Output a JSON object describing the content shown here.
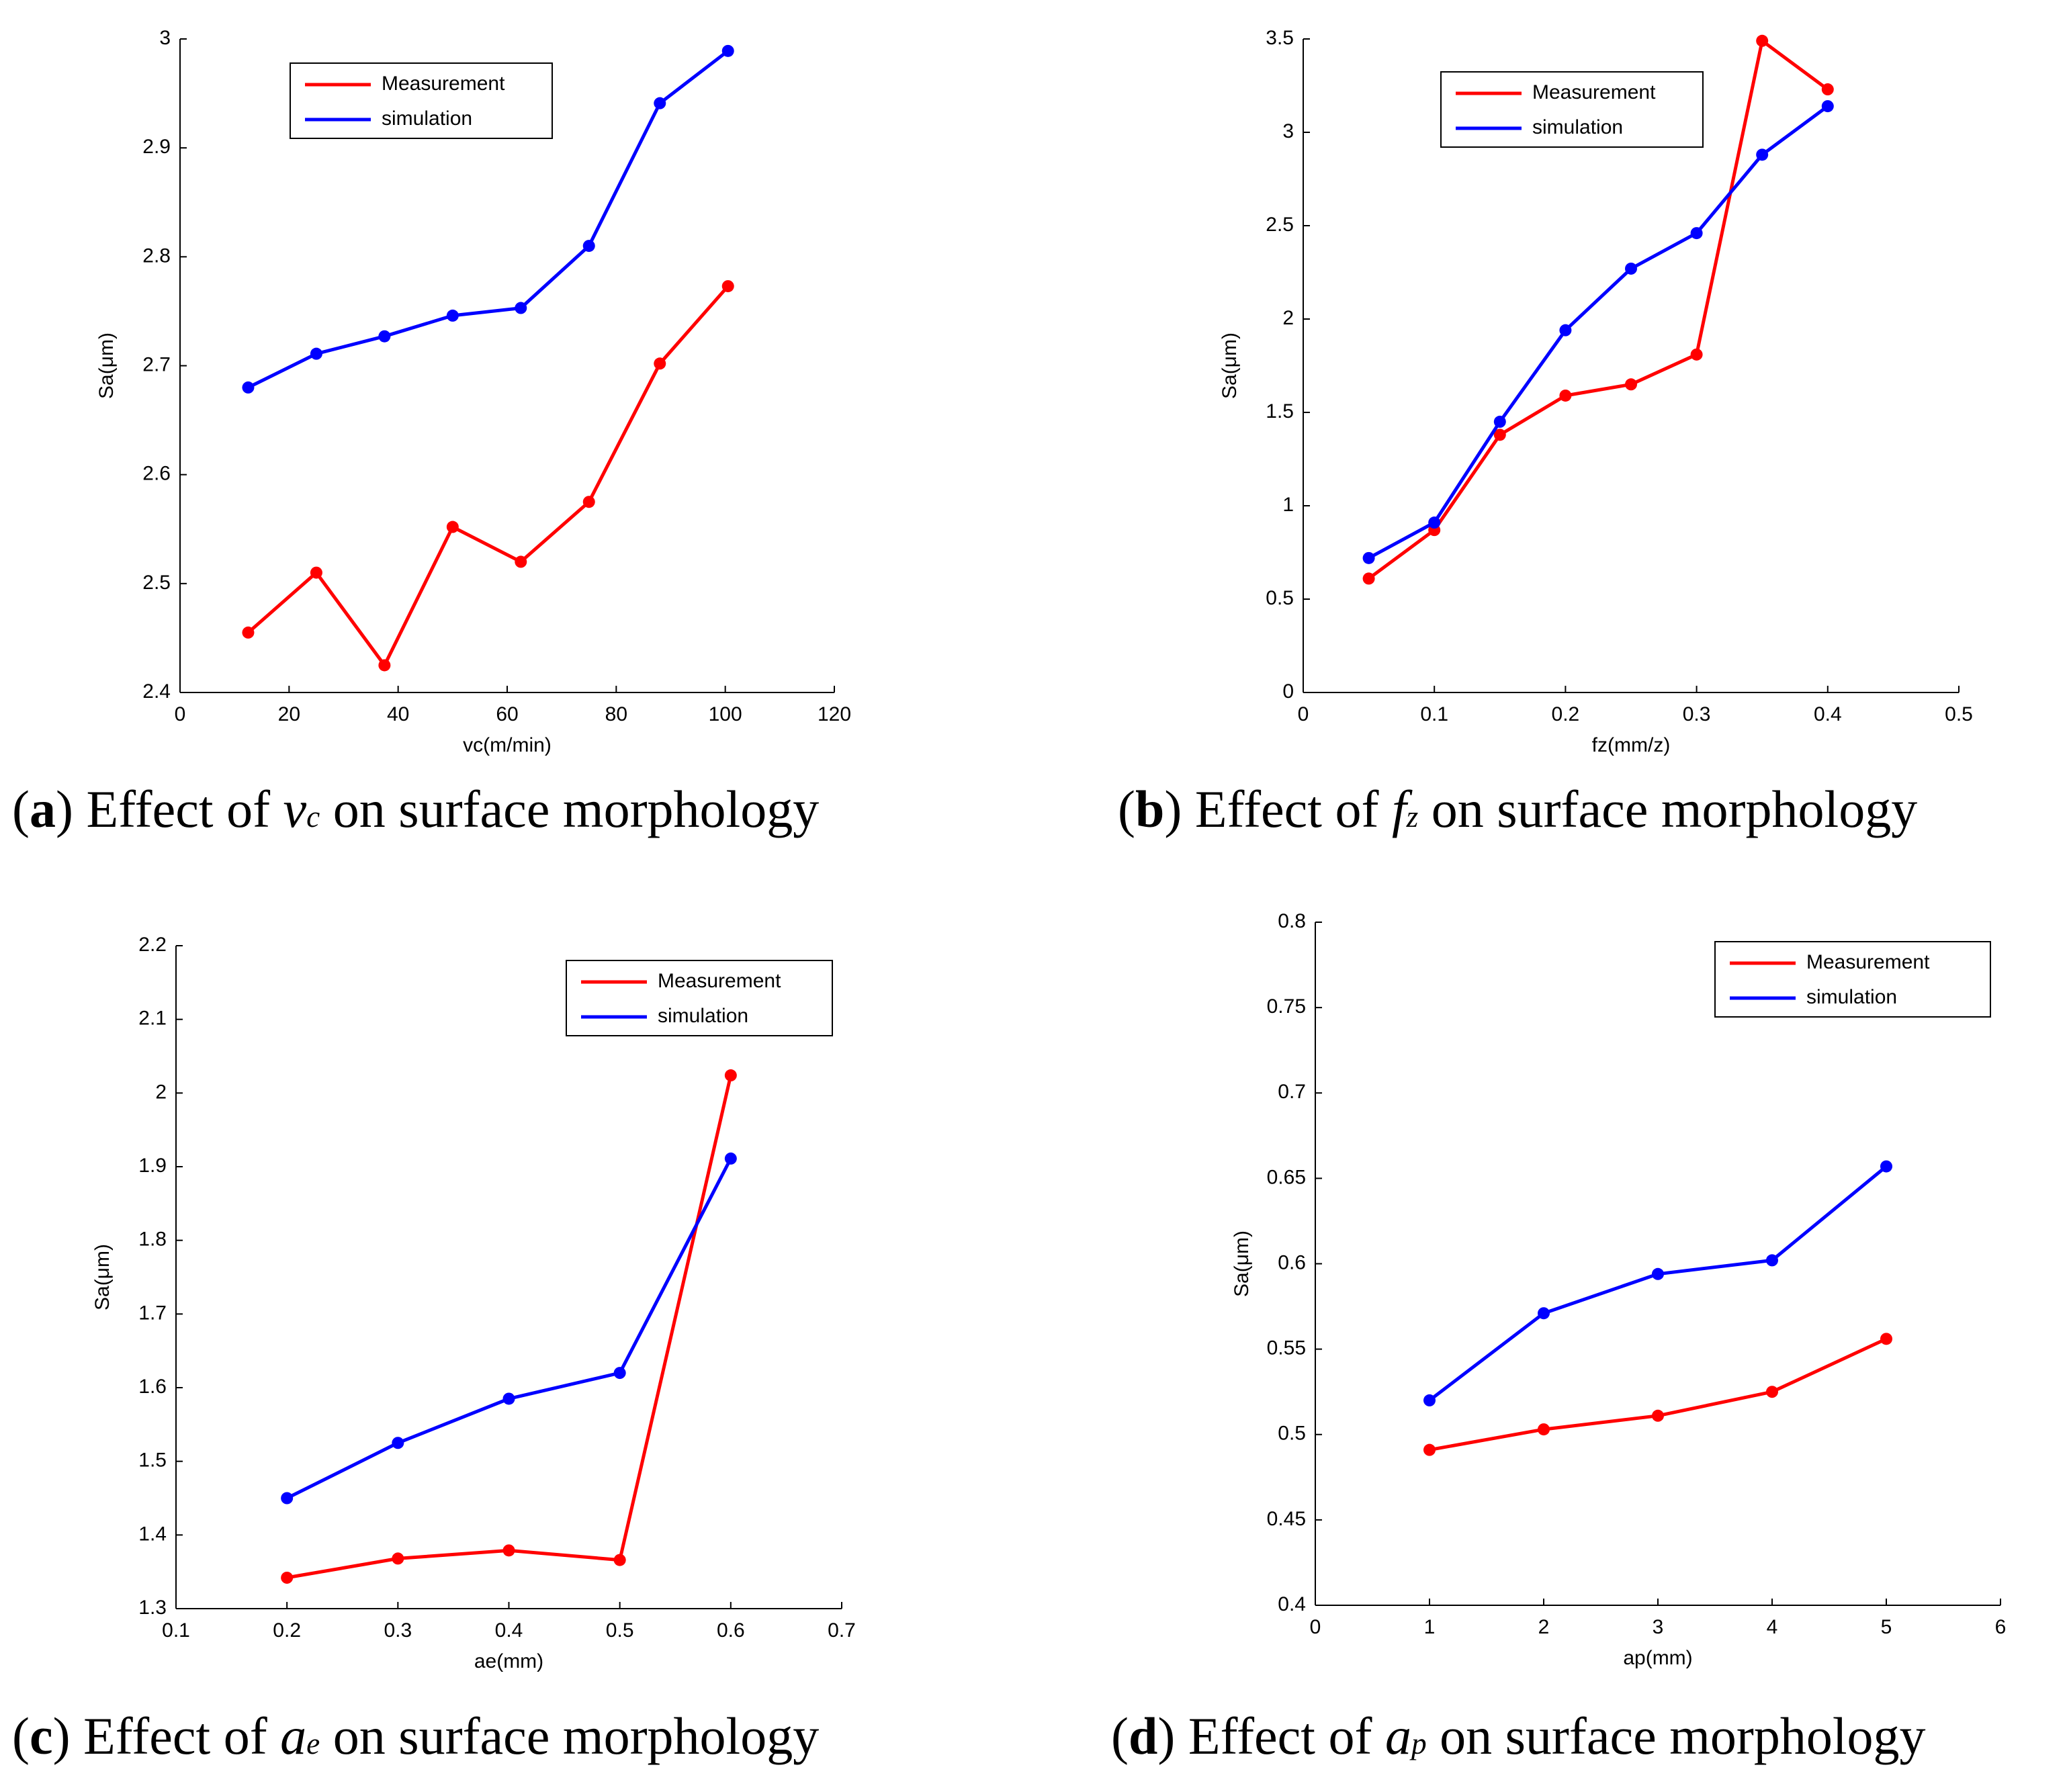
{
  "colors": {
    "measurement": "#ff0000",
    "simulation": "#0000ff",
    "axis": "#000000",
    "background": "#ffffff"
  },
  "chart_data": [
    {
      "id": "a",
      "type": "line",
      "xlabel": "vc(m/min)",
      "ylabel": "Sa(μm)",
      "xlim": [
        0,
        120
      ],
      "ylim": [
        2.4,
        3.0
      ],
      "xticks": [
        0,
        20,
        40,
        60,
        80,
        100,
        120
      ],
      "yticks": [
        2.4,
        2.5,
        2.6,
        2.7,
        2.8,
        2.9,
        3.0
      ],
      "xtick_labels": [
        "0",
        "20",
        "40",
        "60",
        "80",
        "100",
        "120"
      ],
      "ytick_labels": [
        "2.4",
        "2.5",
        "2.6",
        "2.7",
        "2.8",
        "2.9",
        "3"
      ],
      "legend_position": "top-left",
      "x": [
        12.5,
        25,
        37.5,
        50,
        62.5,
        75,
        88,
        100.5
      ],
      "series": [
        {
          "name": "Measurement",
          "color": "#ff0000",
          "values": [
            2.455,
            2.51,
            2.425,
            2.552,
            2.52,
            2.575,
            2.702,
            2.773
          ]
        },
        {
          "name": "simulation",
          "color": "#0000ff",
          "values": [
            2.68,
            2.711,
            2.727,
            2.746,
            2.753,
            2.81,
            2.941,
            2.989
          ]
        }
      ],
      "caption": {
        "letter": "a",
        "prefix": "Effect of",
        "symbol": "v",
        "sub": "c",
        "suffix": "on surface morphology"
      }
    },
    {
      "id": "b",
      "type": "line",
      "xlabel": "fz(mm/z)",
      "ylabel": "Sa(μm)",
      "xlim": [
        0,
        0.5
      ],
      "ylim": [
        0,
        3.5
      ],
      "xticks": [
        0,
        0.1,
        0.2,
        0.3,
        0.4,
        0.5
      ],
      "yticks": [
        0,
        0.5,
        1,
        1.5,
        2,
        2.5,
        3,
        3.5
      ],
      "xtick_labels": [
        "0",
        "0.1",
        "0.2",
        "0.3",
        "0.4",
        "0.5"
      ],
      "ytick_labels": [
        "0",
        "0.5",
        "1",
        "1.5",
        "2",
        "2.5",
        "3",
        "3.5"
      ],
      "legend_position": "top-left",
      "x": [
        0.05,
        0.1,
        0.15,
        0.2,
        0.25,
        0.3,
        0.35,
        0.4
      ],
      "series": [
        {
          "name": "Measurement",
          "color": "#ff0000",
          "values": [
            0.61,
            0.87,
            1.38,
            1.59,
            1.65,
            1.81,
            3.49,
            3.23
          ]
        },
        {
          "name": "simulation",
          "color": "#0000ff",
          "values": [
            0.72,
            0.91,
            1.45,
            1.94,
            2.27,
            2.46,
            2.88,
            3.14
          ]
        }
      ],
      "caption": {
        "letter": "b",
        "prefix": "Effect of",
        "symbol": "f",
        "sub": "z",
        "suffix": "on surface morphology"
      }
    },
    {
      "id": "c",
      "type": "line",
      "xlabel": "ae(mm)",
      "ylabel": "Sa(μm)",
      "xlim": [
        0.1,
        0.7
      ],
      "ylim": [
        1.3,
        2.2
      ],
      "xticks": [
        0.1,
        0.2,
        0.3,
        0.4,
        0.5,
        0.6,
        0.7
      ],
      "yticks": [
        1.3,
        1.4,
        1.5,
        1.6,
        1.7,
        1.8,
        1.9,
        2.0,
        2.1,
        2.2
      ],
      "xtick_labels": [
        "0.1",
        "0.2",
        "0.3",
        "0.4",
        "0.5",
        "0.6",
        "0.7"
      ],
      "ytick_labels": [
        "1.3",
        "1.4",
        "1.5",
        "1.6",
        "1.7",
        "1.8",
        "1.9",
        "2",
        "2.1",
        "2.2"
      ],
      "legend_position": "top-right",
      "x": [
        0.2,
        0.3,
        0.4,
        0.5,
        0.6
      ],
      "series": [
        {
          "name": "Measurement",
          "color": "#ff0000",
          "values": [
            1.342,
            1.368,
            1.379,
            1.366,
            2.024
          ]
        },
        {
          "name": "simulation",
          "color": "#0000ff",
          "values": [
            1.45,
            1.525,
            1.585,
            1.62,
            1.911
          ]
        }
      ],
      "caption": {
        "letter": "c",
        "prefix": "Effect of",
        "symbol": "a",
        "sub": "e",
        "suffix": "on surface morphology"
      }
    },
    {
      "id": "d",
      "type": "line",
      "xlabel": "ap(mm)",
      "ylabel": "Sa(μm)",
      "xlim": [
        0,
        6
      ],
      "ylim": [
        0.4,
        0.8
      ],
      "xticks": [
        0,
        1,
        2,
        3,
        4,
        5,
        6
      ],
      "yticks": [
        0.4,
        0.45,
        0.5,
        0.55,
        0.6,
        0.65,
        0.7,
        0.75,
        0.8
      ],
      "xtick_labels": [
        "0",
        "1",
        "2",
        "3",
        "4",
        "5",
        "6"
      ],
      "ytick_labels": [
        "0.4",
        "0.45",
        "0.5",
        "0.55",
        "0.6",
        "0.65",
        "0.7",
        "0.75",
        "0.8"
      ],
      "legend_position": "top-right",
      "x": [
        1,
        2,
        3,
        4,
        5
      ],
      "series": [
        {
          "name": "Measurement",
          "color": "#ff0000",
          "values": [
            0.491,
            0.503,
            0.511,
            0.525,
            0.556
          ]
        },
        {
          "name": "simulation",
          "color": "#0000ff",
          "values": [
            0.52,
            0.571,
            0.594,
            0.602,
            0.657
          ]
        }
      ],
      "caption": {
        "letter": "d",
        "prefix": "Effect of",
        "symbol": "a",
        "sub": "p",
        "suffix": "on surface morphology"
      }
    }
  ]
}
